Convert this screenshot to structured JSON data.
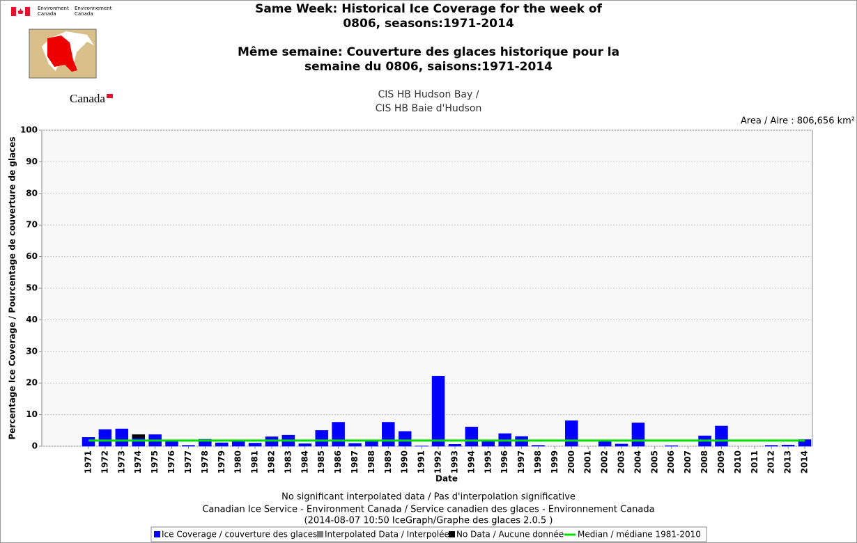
{
  "header": {
    "dept_en_lines": [
      "Environment",
      "Canada"
    ],
    "dept_fr_lines": [
      "Environnement",
      "Canada"
    ],
    "wordmark": "Canada"
  },
  "chart_data": {
    "type": "bar",
    "title_lines": [
      "Same Week: Historical Ice Coverage for the week of",
      "0806, seasons:1971-2014",
      "Même semaine: Couverture des glaces historique pour la",
      "semaine du 0806, saisons:1971-2014"
    ],
    "subtitle_lines": [
      "CIS HB Hudson Bay /",
      "CIS HB Baie d'Hudson"
    ],
    "area_label": "Area / Aire : 806,656 km²",
    "y_label": "Percentage Ice Coverage / Pourcentage de couverture de glaces",
    "x_label": "Date",
    "footer_lines": [
      "No significant interpolated data / Pas d'interpolation significative",
      "Canadian Ice Service - Environment Canada / Service canadien des glaces - Environnement Canada",
      "(2014-08-07 10:50 IceGraph/Graphe des glaces 2.0.5 )"
    ],
    "categories": [
      "1971",
      "1972",
      "1973",
      "1974",
      "1975",
      "1976",
      "1977",
      "1978",
      "1979",
      "1980",
      "1981",
      "1982",
      "1983",
      "1984",
      "1985",
      "1986",
      "1987",
      "1988",
      "1989",
      "1990",
      "1991",
      "1992",
      "1993",
      "1994",
      "1995",
      "1996",
      "1997",
      "1998",
      "1999",
      "2000",
      "2001",
      "2002",
      "2003",
      "2004",
      "2005",
      "2006",
      "2007",
      "2008",
      "2009",
      "2010",
      "2011",
      "2012",
      "2013",
      "2014"
    ],
    "series": [
      {
        "name": "Ice Coverage / couverture des glaces",
        "color": "#0000ff",
        "values": [
          2.8,
          5.3,
          5.5,
          2.6,
          3.7,
          1.5,
          0.3,
          2.2,
          1.1,
          1.6,
          1.0,
          3.0,
          3.5,
          0.8,
          5.0,
          7.6,
          0.9,
          1.7,
          7.6,
          4.7,
          0.1,
          22.2,
          0.6,
          6.1,
          1.8,
          4.0,
          3.1,
          0.3,
          0,
          8.1,
          0,
          1.8,
          0.7,
          7.4,
          0,
          0.2,
          0,
          3.3,
          6.4,
          0,
          0,
          0.3,
          0.4,
          2.1
        ]
      },
      {
        "name": "Interpolated Data / Interpolée",
        "color": "#808080",
        "values": [
          null,
          null,
          null,
          null,
          null,
          null,
          null,
          null,
          null,
          null,
          null,
          null,
          null,
          null,
          null,
          null,
          null,
          null,
          null,
          null,
          null,
          null,
          null,
          null,
          null,
          null,
          null,
          null,
          null,
          null,
          null,
          null,
          null,
          null,
          null,
          null,
          null,
          null,
          null,
          null,
          null,
          null,
          null,
          null
        ]
      },
      {
        "name": "No Data / Aucune donnée",
        "color": "#000000",
        "values": [
          null,
          null,
          null,
          1.1,
          null,
          null,
          null,
          null,
          null,
          null,
          null,
          null,
          null,
          null,
          null,
          null,
          null,
          null,
          null,
          null,
          null,
          null,
          null,
          null,
          null,
          null,
          null,
          null,
          null,
          null,
          null,
          null,
          null,
          null,
          null,
          null,
          null,
          null,
          null,
          null,
          null,
          null,
          null,
          null
        ]
      }
    ],
    "median": {
      "name": "Median / médiane 1981-2010",
      "color": "#00dd00",
      "value": 1.8
    },
    "ylim": [
      0,
      100
    ],
    "yticks": [
      0,
      10,
      20,
      30,
      40,
      50,
      60,
      70,
      80,
      90,
      100
    ],
    "grid": true
  }
}
